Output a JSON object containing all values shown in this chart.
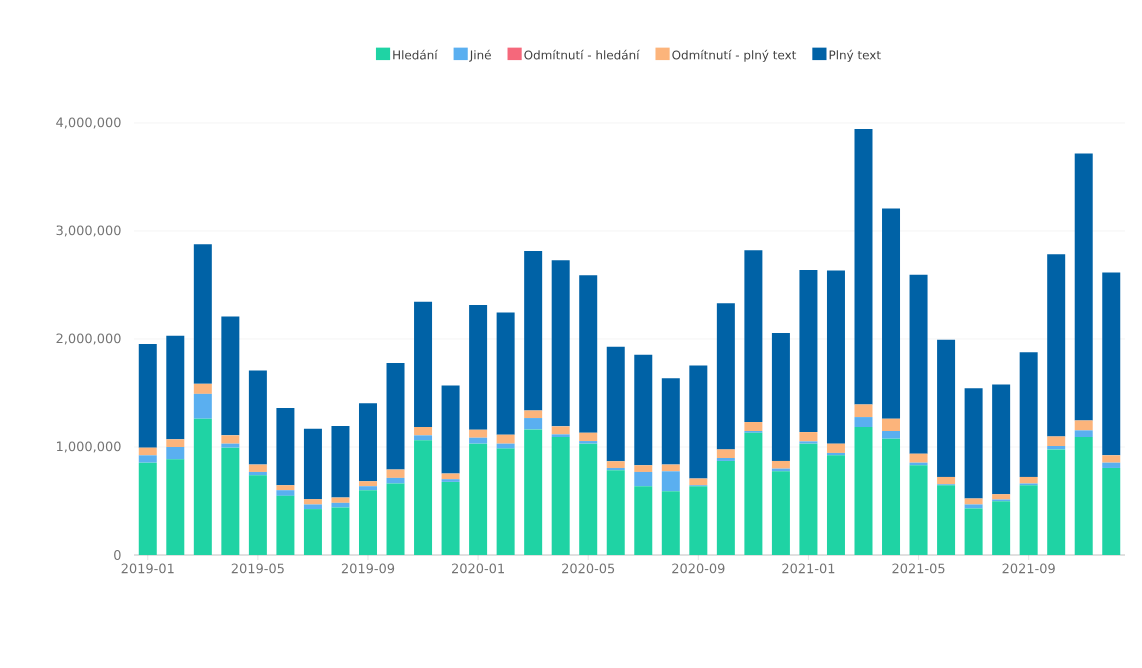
{
  "chart_data": {
    "type": "bar",
    "stacked": true,
    "legend": "top",
    "grid": "y",
    "categories": [
      "2019-01",
      null,
      null,
      null,
      "2019-05",
      null,
      null,
      null,
      "2019-09",
      null,
      null,
      null,
      "2020-01",
      null,
      null,
      null,
      "2020-05",
      null,
      null,
      null,
      "2020-09",
      null,
      null,
      null,
      "2021-01",
      null,
      null,
      null,
      "2021-05",
      null,
      null,
      null,
      "2021-09",
      null,
      null,
      null
    ],
    "ylim": [
      0,
      4000000
    ],
    "yticks": [
      0,
      {
        "value": 1000000,
        "label": "1,000,000"
      },
      {
        "value": 2000000,
        "label": "2,000,000"
      },
      {
        "value": 3000000,
        "label": "3,000,000"
      },
      {
        "value": 4000000,
        "label": "4,000,000"
      }
    ],
    "series": [
      {
        "name": "Hledání",
        "color": "#1fd3a4",
        "values": [
          855000,
          886000,
          1262000,
          994000,
          738000,
          548000,
          425000,
          440000,
          600000,
          662000,
          1062000,
          677000,
          1031000,
          985000,
          1163000,
          1092000,
          1031000,
          785000,
          637000,
          591000,
          637000,
          871000,
          1132000,
          775000,
          1031000,
          923000,
          1185000,
          1077000,
          831000,
          646000,
          431000,
          498000,
          646000,
          978000,
          1092000,
          806000
        ]
      },
      {
        "name": "Jiné",
        "color": "#5aaff0",
        "values": [
          68000,
          114000,
          230000,
          37000,
          31000,
          52000,
          43000,
          43000,
          37000,
          52000,
          46000,
          25000,
          55000,
          46000,
          105000,
          25000,
          24000,
          21000,
          132000,
          184000,
          9000,
          27000,
          16000,
          25000,
          21000,
          22000,
          92000,
          71000,
          24000,
          9000,
          37000,
          16000,
          16000,
          31000,
          62000,
          49000
        ]
      },
      {
        "name": "Odmítnutí - hledání",
        "color": "#f5687b",
        "values": [
          0,
          0,
          0,
          0,
          0,
          0,
          0,
          0,
          0,
          0,
          0,
          0,
          0,
          0,
          0,
          0,
          0,
          0,
          0,
          0,
          0,
          0,
          0,
          0,
          0,
          0,
          0,
          0,
          0,
          0,
          0,
          0,
          0,
          0,
          0,
          0
        ]
      },
      {
        "name": "Odmítnutí - plný text",
        "color": "#fcb47b",
        "values": [
          71000,
          71000,
          93000,
          77000,
          68000,
          46000,
          49000,
          49000,
          46000,
          77000,
          77000,
          52000,
          74000,
          83000,
          70000,
          74000,
          77000,
          62000,
          62000,
          62000,
          62000,
          80000,
          83000,
          71000,
          86000,
          86000,
          117000,
          114000,
          83000,
          68000,
          55000,
          49000,
          61000,
          89000,
          92000,
          68000
        ]
      },
      {
        "name": "Plný text",
        "color": "#0062a6",
        "values": [
          960000,
          960000,
          1292000,
          1101000,
          871000,
          714000,
          652000,
          662000,
          723000,
          987000,
          1160000,
          815000,
          1154000,
          1132000,
          1477000,
          1538000,
          1459000,
          1061000,
          1024000,
          800000,
          1046000,
          1354000,
          1591000,
          1184000,
          1502000,
          1603000,
          2551000,
          1947000,
          1656000,
          1271000,
          1022000,
          1015000,
          1154000,
          1687000,
          2471000,
          1692000
        ]
      }
    ]
  }
}
